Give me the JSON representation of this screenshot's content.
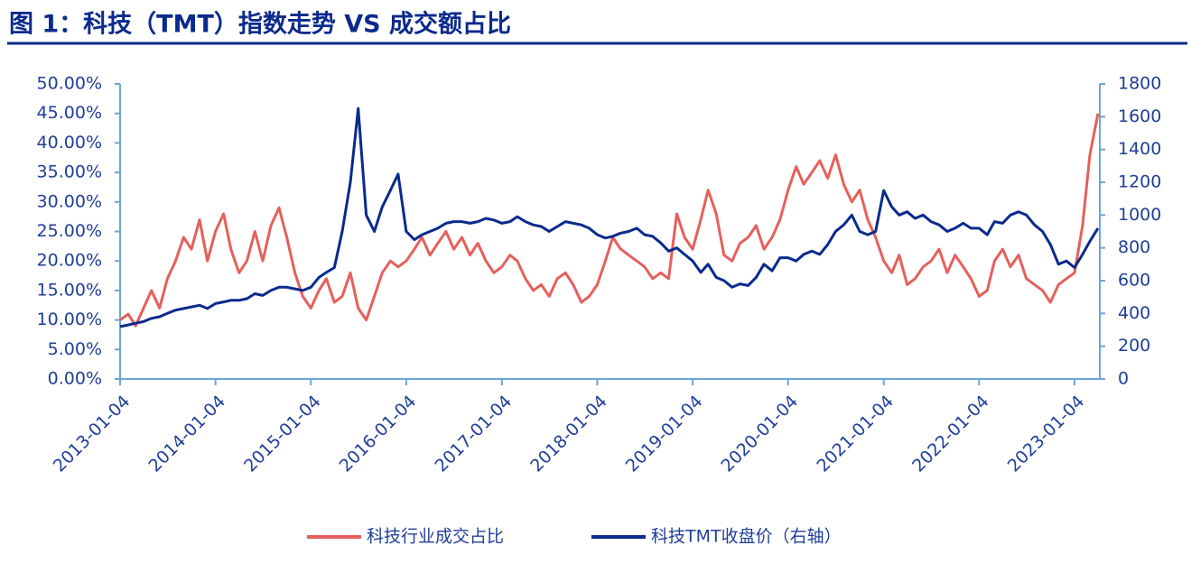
{
  "chart_data": {
    "type": "line",
    "title": "图 1：科技（TMT）指数走势 VS 成交额占比",
    "x": [
      "2013-01-04",
      "2013-02-04",
      "2013-03-04",
      "2013-04-04",
      "2013-05-04",
      "2013-06-04",
      "2013-07-04",
      "2013-08-04",
      "2013-09-04",
      "2013-10-04",
      "2013-11-04",
      "2013-12-04",
      "2014-01-04",
      "2014-02-04",
      "2014-03-04",
      "2014-04-04",
      "2014-05-04",
      "2014-06-04",
      "2014-07-04",
      "2014-08-04",
      "2014-09-04",
      "2014-10-04",
      "2014-11-04",
      "2014-12-04",
      "2015-01-04",
      "2015-02-04",
      "2015-03-04",
      "2015-04-04",
      "2015-05-04",
      "2015-06-04",
      "2015-07-04",
      "2015-08-04",
      "2015-09-04",
      "2015-10-04",
      "2015-11-04",
      "2015-12-04",
      "2016-01-04",
      "2016-02-04",
      "2016-03-04",
      "2016-04-04",
      "2016-05-04",
      "2016-06-04",
      "2016-07-04",
      "2016-08-04",
      "2016-09-04",
      "2016-10-04",
      "2016-11-04",
      "2016-12-04",
      "2017-01-04",
      "2017-02-04",
      "2017-03-04",
      "2017-04-04",
      "2017-05-04",
      "2017-06-04",
      "2017-07-04",
      "2017-08-04",
      "2017-09-04",
      "2017-10-04",
      "2017-11-04",
      "2017-12-04",
      "2018-01-04",
      "2018-02-04",
      "2018-03-04",
      "2018-04-04",
      "2018-05-04",
      "2018-06-04",
      "2018-07-04",
      "2018-08-04",
      "2018-09-04",
      "2018-10-04",
      "2018-11-04",
      "2018-12-04",
      "2019-01-04",
      "2019-02-04",
      "2019-03-04",
      "2019-04-04",
      "2019-05-04",
      "2019-06-04",
      "2019-07-04",
      "2019-08-04",
      "2019-09-04",
      "2019-10-04",
      "2019-11-04",
      "2019-12-04",
      "2020-01-04",
      "2020-02-04",
      "2020-03-04",
      "2020-04-04",
      "2020-05-04",
      "2020-06-04",
      "2020-07-04",
      "2020-08-04",
      "2020-09-04",
      "2020-10-04",
      "2020-11-04",
      "2020-12-04",
      "2021-01-04",
      "2021-02-04",
      "2021-03-04",
      "2021-04-04",
      "2021-05-04",
      "2021-06-04",
      "2021-07-04",
      "2021-08-04",
      "2021-09-04",
      "2021-10-04",
      "2021-11-04",
      "2021-12-04",
      "2022-01-04",
      "2022-02-04",
      "2022-03-04",
      "2022-04-04",
      "2022-05-04",
      "2022-06-04",
      "2022-07-04",
      "2022-08-04",
      "2022-09-04",
      "2022-10-04",
      "2022-11-04",
      "2022-12-04",
      "2023-01-04",
      "2023-02-04",
      "2023-03-04",
      "2023-04-04"
    ],
    "series": [
      {
        "name": "科技行业成交占比",
        "color": "#e5605c",
        "axis": "y",
        "values": [
          10,
          11,
          9,
          12,
          15,
          12,
          17,
          20,
          24,
          22,
          27,
          20,
          25,
          28,
          22,
          18,
          20,
          25,
          20,
          26,
          29,
          24,
          18,
          14,
          12,
          15,
          17,
          13,
          14,
          18,
          12,
          10,
          14,
          18,
          20,
          19,
          20,
          22,
          24,
          21,
          23,
          25,
          22,
          24,
          21,
          23,
          20,
          18,
          19,
          21,
          20,
          17,
          15,
          16,
          14,
          17,
          18,
          16,
          13,
          14,
          16,
          20,
          24,
          22,
          21,
          20,
          19,
          17,
          18,
          17,
          28,
          24,
          22,
          27,
          32,
          28,
          21,
          20,
          23,
          24,
          26,
          22,
          24,
          27,
          32,
          36,
          33,
          35,
          37,
          34,
          38,
          33,
          30,
          32,
          27,
          24,
          20,
          18,
          21,
          16,
          17,
          19,
          20,
          22,
          18,
          21,
          19,
          17,
          14,
          15,
          20,
          22,
          19,
          21,
          17,
          16,
          15,
          13,
          16,
          17,
          18,
          26,
          38,
          45
        ]
      },
      {
        "name": "科技TMT收盘价（右轴）",
        "color": "#0a2a8c",
        "axis": "y2",
        "values": [
          320,
          330,
          340,
          350,
          370,
          380,
          400,
          420,
          430,
          440,
          450,
          430,
          460,
          470,
          480,
          480,
          490,
          520,
          510,
          540,
          560,
          560,
          550,
          540,
          560,
          620,
          650,
          680,
          900,
          1200,
          1650,
          1000,
          900,
          1050,
          1150,
          1250,
          900,
          850,
          880,
          900,
          920,
          950,
          960,
          960,
          950,
          960,
          980,
          970,
          950,
          960,
          990,
          960,
          940,
          930,
          900,
          930,
          960,
          950,
          940,
          920,
          880,
          860,
          870,
          890,
          900,
          920,
          880,
          870,
          830,
          780,
          800,
          760,
          720,
          650,
          700,
          620,
          600,
          560,
          580,
          570,
          620,
          700,
          660,
          740,
          740,
          720,
          760,
          780,
          760,
          820,
          900,
          940,
          1000,
          900,
          880,
          900,
          1150,
          1050,
          1000,
          1020,
          980,
          1000,
          960,
          940,
          900,
          920,
          950,
          920,
          920,
          880,
          960,
          950,
          1000,
          1020,
          1000,
          940,
          900,
          820,
          700,
          720,
          680,
          760,
          840,
          920
        ]
      }
    ],
    "xlim": [
      "2013-01-04",
      "2023-04-04"
    ],
    "xticks": [
      "2013-01-04",
      "2014-01-04",
      "2015-01-04",
      "2016-01-04",
      "2017-01-04",
      "2018-01-04",
      "2019-01-04",
      "2020-01-04",
      "2021-01-04",
      "2022-01-04",
      "2023-01-04"
    ],
    "ylim": [
      0,
      50
    ],
    "yticks": [
      {
        "value": 0,
        "label": "0.00%"
      },
      {
        "value": 5,
        "label": "5.00%"
      },
      {
        "value": 10,
        "label": "10.00%"
      },
      {
        "value": 15,
        "label": "15.00%"
      },
      {
        "value": 20,
        "label": "20.00%"
      },
      {
        "value": 25,
        "label": "25.00%"
      },
      {
        "value": 30,
        "label": "30.00%"
      },
      {
        "value": 35,
        "label": "35.00%"
      },
      {
        "value": 40,
        "label": "40.00%"
      },
      {
        "value": 45,
        "label": "45.00%"
      },
      {
        "value": 50,
        "label": "50.00%"
      }
    ],
    "y2lim": [
      0,
      1800
    ],
    "y2ticks": [
      0,
      200,
      400,
      600,
      800,
      1000,
      1200,
      1400,
      1600,
      1800
    ],
    "legend": "bottom"
  }
}
